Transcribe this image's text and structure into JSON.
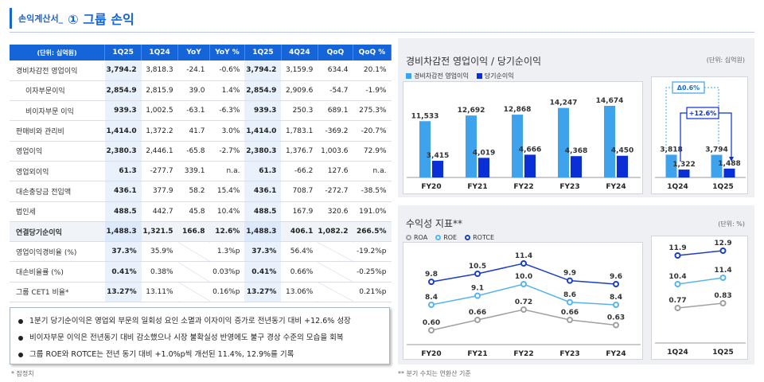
{
  "header": {
    "sub": "손익계산서_",
    "title": "① 그룹 손익"
  },
  "table": {
    "unit": "(단위: 십억원)",
    "cols": [
      "1Q25",
      "1Q24",
      "YoY",
      "YoY %",
      "1Q25",
      "4Q24",
      "QoQ",
      "QoQ %"
    ],
    "rows": [
      {
        "label": "경비차감전 영업이익",
        "indent": false,
        "v": [
          "3,794.2",
          "3,818.3",
          "-24.1",
          "-0.6%",
          "3,794.2",
          "3,159.9",
          "634.4",
          "20.1%"
        ]
      },
      {
        "label": "이자부문이익",
        "indent": true,
        "v": [
          "2,854.9",
          "2,815.9",
          "39.0",
          "1.4%",
          "2,854.9",
          "2,909.6",
          "-54.7",
          "-1.9%"
        ]
      },
      {
        "label": "비이자부문 이익",
        "indent": true,
        "v": [
          "939.3",
          "1,002.5",
          "-63.1",
          "-6.3%",
          "939.3",
          "250.3",
          "689.1",
          "275.3%"
        ]
      },
      {
        "label": "판매비와 관리비",
        "indent": false,
        "v": [
          "1,414.0",
          "1,372.2",
          "41.7",
          "3.0%",
          "1,414.0",
          "1,783.1",
          "-369.2",
          "-20.7%"
        ]
      },
      {
        "label": "영업이익",
        "indent": false,
        "v": [
          "2,380.3",
          "2,446.1",
          "-65.8",
          "-2.7%",
          "2,380.3",
          "1,376.7",
          "1,003.6",
          "72.9%"
        ]
      },
      {
        "label": "영업외이익",
        "indent": false,
        "v": [
          "61.3",
          "-277.7",
          "339.1",
          "n.a.",
          "61.3",
          "-66.2",
          "127.6",
          "n.a."
        ]
      },
      {
        "label": "대손충당금 전입액",
        "indent": false,
        "v": [
          "436.1",
          "377.9",
          "58.2",
          "15.4%",
          "436.1",
          "708.7",
          "-272.7",
          "-38.5%"
        ]
      },
      {
        "label": "법인세",
        "indent": false,
        "v": [
          "488.5",
          "442.7",
          "45.8",
          "10.4%",
          "488.5",
          "167.9",
          "320.6",
          "191.0%"
        ]
      },
      {
        "label": "연결당기순이익",
        "indent": false,
        "bold": true,
        "v": [
          "1,488.3",
          "1,321.5",
          "166.8",
          "12.6%",
          "1,488.3",
          "406.1",
          "1,082.2",
          "266.5%"
        ]
      },
      {
        "label": "영업이익경비율 (%)",
        "indent": false,
        "v": [
          "37.3%",
          "35.9%",
          "",
          "1.3%p",
          "37.3%",
          "56.4%",
          "",
          "-19.2%p"
        ]
      },
      {
        "label": "대손비율률 (%)",
        "indent": false,
        "v": [
          "0.41%",
          "0.38%",
          "",
          "0.03%p",
          "0.41%",
          "0.66%",
          "",
          "-0.25%p"
        ]
      },
      {
        "label": "그룹 CET1 비율*",
        "indent": false,
        "v": [
          "13.27%",
          "13.11%",
          "",
          "0.16%p",
          "13.27%",
          "13.06%",
          "",
          "0.21%p"
        ]
      }
    ]
  },
  "bullets": [
    "1분기 당기순이익은 영업외 부문의 일회성 요인 소멸과 이자이익 증가로 전년동기 대비 +12.6% 성장",
    "비이자부문 이익은 전년동기 대비 감소했으나 시장 불확실성 반영에도 불구 경상 수준의 모습을 회복",
    "그룹 ROE와 ROTCE는 전년 동기 대비 +1.0%p씩 개선된 11.4%, 12.9%를 기록"
  ],
  "footnote_left": "* 잠정치",
  "footnote_right": "** 분기 수치는 연환산 기준",
  "colors": {
    "light": "#3fa2ec",
    "dark": "#0a2fd6",
    "roa": "#a0a0a0",
    "roe": "#58b4ee",
    "rotce": "#1a3fc4",
    "accent": "#1565d8"
  },
  "chart_data": [
    {
      "type": "bar",
      "title": "경비차감전 영업이익 / 당기순이익",
      "unit": "(단위: 십억원)",
      "categories": [
        "FY20",
        "FY21",
        "FY22",
        "FY23",
        "FY24"
      ],
      "series": [
        {
          "name": "경비차감전 영업이익",
          "values": [
            11533,
            12692,
            12868,
            14247,
            14674
          ],
          "labels": [
            "11,533",
            "12,692",
            "12,868",
            "14,247",
            "14,674"
          ]
        },
        {
          "name": "당기순이익",
          "values": [
            3415,
            4019,
            4666,
            4368,
            4450
          ],
          "labels": [
            "3,415",
            "4,019",
            "4,666",
            "4,368",
            "4,450"
          ]
        }
      ]
    },
    {
      "type": "bar",
      "categories": [
        "1Q24",
        "1Q25"
      ],
      "series": [
        {
          "name": "경비차감전 영업이익",
          "values": [
            3818,
            3794
          ],
          "labels": [
            "3,818",
            "3,794"
          ]
        },
        {
          "name": "당기순이익",
          "values": [
            1322,
            1488
          ],
          "labels": [
            "1,322",
            "1,488"
          ]
        }
      ],
      "annotations": [
        "Δ0.6%",
        "+12.6%"
      ]
    },
    {
      "type": "line",
      "title": "수익성 지표**",
      "unit": "(단위: %)",
      "categories": [
        "FY20",
        "FY21",
        "FY22",
        "FY23",
        "FY24"
      ],
      "series": [
        {
          "name": "ROA",
          "values": [
            0.6,
            0.66,
            0.72,
            0.66,
            0.63
          ],
          "labels": [
            "0.60",
            "0.66",
            "0.72",
            "0.66",
            "0.63"
          ]
        },
        {
          "name": "ROE",
          "values": [
            8.4,
            9.1,
            10.0,
            8.6,
            8.4
          ],
          "labels": [
            "8.4",
            "9.1",
            "10.0",
            "8.6",
            "8.4"
          ]
        },
        {
          "name": "ROTCE",
          "values": [
            9.8,
            10.5,
            11.4,
            9.9,
            9.6
          ],
          "labels": [
            "9.8",
            "10.5",
            "11.4",
            "9.9",
            "9.6"
          ]
        }
      ]
    },
    {
      "type": "line",
      "categories": [
        "1Q24",
        "1Q25"
      ],
      "series": [
        {
          "name": "ROA",
          "values": [
            0.77,
            0.83
          ],
          "labels": [
            "0.77",
            "0.83"
          ]
        },
        {
          "name": "ROE",
          "values": [
            10.4,
            11.4
          ],
          "labels": [
            "10.4",
            "11.4"
          ]
        },
        {
          "name": "ROTCE",
          "values": [
            11.9,
            12.9
          ],
          "labels": [
            "11.9",
            "12.9"
          ]
        }
      ]
    }
  ]
}
